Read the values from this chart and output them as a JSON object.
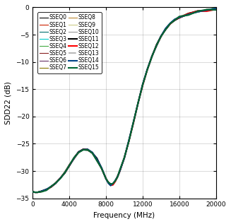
{
  "xlabel": "Frequency (MHz)",
  "ylabel": "SDD22 (dB)",
  "xlim": [
    0,
    20000
  ],
  "ylim": [
    -35,
    0
  ],
  "xticks": [
    0,
    4000,
    8000,
    12000,
    16000,
    20000
  ],
  "yticks": [
    0,
    -5,
    -10,
    -15,
    -20,
    -25,
    -30,
    -35
  ],
  "series": [
    {
      "name": "SSEQ0",
      "color": "#000000",
      "lw": 0.8,
      "ls": "-",
      "zorder": 2
    },
    {
      "name": "SSEQ1",
      "color": "#cc2200",
      "lw": 0.8,
      "ls": "-",
      "zorder": 2
    },
    {
      "name": "SSEQ2",
      "color": "#007070",
      "lw": 0.8,
      "ls": "-",
      "zorder": 2
    },
    {
      "name": "SSEQ3",
      "color": "#00cccc",
      "lw": 0.8,
      "ls": "-",
      "zorder": 2
    },
    {
      "name": "SSEQ4",
      "color": "#44aa44",
      "lw": 0.8,
      "ls": "-",
      "zorder": 2
    },
    {
      "name": "SSEQ5",
      "color": "#882222",
      "lw": 0.8,
      "ls": "-",
      "zorder": 2
    },
    {
      "name": "SSEQ6",
      "color": "#663366",
      "lw": 0.8,
      "ls": "-",
      "zorder": 2
    },
    {
      "name": "SSEQ7",
      "color": "#887700",
      "lw": 0.8,
      "ls": "-",
      "zorder": 2
    },
    {
      "name": "SSEQ8",
      "color": "#bb8833",
      "lw": 0.8,
      "ls": "-",
      "zorder": 2
    },
    {
      "name": "SSEQ9",
      "color": "#cccc88",
      "lw": 0.8,
      "ls": "-",
      "zorder": 2
    },
    {
      "name": "SSEQ10",
      "color": "#999999",
      "lw": 0.8,
      "ls": "-",
      "zorder": 2
    },
    {
      "name": "SSEQ11",
      "color": "#000000",
      "lw": 1.5,
      "ls": "-",
      "zorder": 3
    },
    {
      "name": "SSEQ12",
      "color": "#ff0000",
      "lw": 1.5,
      "ls": "-",
      "zorder": 3
    },
    {
      "name": "SSEQ13",
      "color": "#aaaaaa",
      "lw": 1.2,
      "ls": "-.",
      "zorder": 2
    },
    {
      "name": "SSEQ14",
      "color": "#004488",
      "lw": 1.5,
      "ls": "-",
      "zorder": 3
    },
    {
      "name": "SSEQ15",
      "color": "#006633",
      "lw": 1.5,
      "ls": "-",
      "zorder": 4
    }
  ],
  "freq_points": [
    0,
    250,
    500,
    750,
    1000,
    1500,
    2000,
    2500,
    3000,
    3500,
    4000,
    4500,
    5000,
    5500,
    6000,
    6500,
    7000,
    7500,
    8000,
    8250,
    8500,
    8750,
    9000,
    9250,
    9500,
    10000,
    10500,
    11000,
    11500,
    12000,
    12500,
    13000,
    13500,
    14000,
    14500,
    15000,
    15500,
    16000,
    17000,
    18000,
    19000,
    20000
  ],
  "sdd22_values": [
    -33.8,
    -33.9,
    -33.9,
    -33.8,
    -33.7,
    -33.4,
    -32.9,
    -32.2,
    -31.3,
    -30.2,
    -28.9,
    -27.7,
    -26.6,
    -26.0,
    -26.1,
    -26.7,
    -27.9,
    -29.5,
    -31.4,
    -32.1,
    -32.5,
    -32.4,
    -31.8,
    -31.0,
    -30.0,
    -27.5,
    -24.5,
    -21.0,
    -17.5,
    -14.2,
    -11.4,
    -9.0,
    -7.0,
    -5.3,
    -4.0,
    -3.0,
    -2.3,
    -1.8,
    -1.2,
    -0.8,
    -0.5,
    -0.3
  ],
  "background_color": "#ffffff",
  "legend_fontsize": 5.5,
  "axis_fontsize": 7.5,
  "tick_fontsize": 6.5
}
